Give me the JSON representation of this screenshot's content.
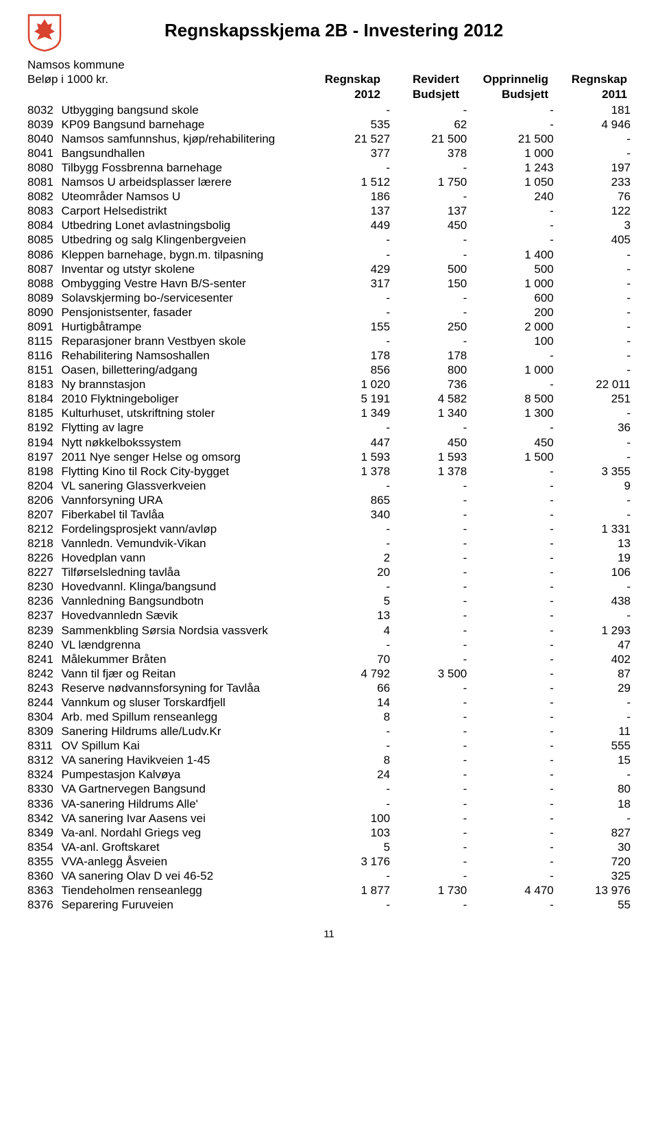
{
  "header": {
    "title": "Regnskapsskjema 2B - Investering 2012",
    "org": "Namsos kommune",
    "unit": "Beløp i 1000 kr.",
    "shield_bg": "#ffffff",
    "shield_red": "#d8432f",
    "shield_border": "#d8432f"
  },
  "columns": {
    "c1_top": "Regnskap",
    "c1_sub": "2012",
    "c2_top": "Revidert",
    "c2_sub": "Budsjett",
    "c3_top": "Opprinnelig",
    "c3_sub": "Budsjett",
    "c4_top": "Regnskap",
    "c4_sub": "2011"
  },
  "rows": [
    {
      "code": "8032",
      "desc": "Utbygging bangsund skole",
      "v": [
        "-",
        "-",
        "-",
        "181"
      ]
    },
    {
      "code": "8039",
      "desc": "KP09 Bangsund barnehage",
      "v": [
        "535",
        "62",
        "-",
        "4 946"
      ]
    },
    {
      "code": "8040",
      "desc": "Namsos samfunnshus, kjøp/rehabilitering",
      "v": [
        "21 527",
        "21 500",
        "21 500",
        "-"
      ]
    },
    {
      "code": "8041",
      "desc": "Bangsundhallen",
      "v": [
        "377",
        "378",
        "1 000",
        "-"
      ]
    },
    {
      "code": "8080",
      "desc": "Tilbygg Fossbrenna barnehage",
      "v": [
        "-",
        "-",
        "1 243",
        "197"
      ]
    },
    {
      "code": "8081",
      "desc": "Namsos U arbeidsplasser lærere",
      "v": [
        "1 512",
        "1 750",
        "1 050",
        "233"
      ]
    },
    {
      "code": "8082",
      "desc": "Uteområder Namsos U",
      "v": [
        "186",
        "-",
        "240",
        "76"
      ]
    },
    {
      "code": "8083",
      "desc": "Carport Helsedistrikt",
      "v": [
        "137",
        "137",
        "-",
        "122"
      ]
    },
    {
      "code": "8084",
      "desc": "Utbedring Lonet avlastningsbolig",
      "v": [
        "449",
        "450",
        "-",
        "3"
      ]
    },
    {
      "code": "8085",
      "desc": "Utbedring og salg Klingenbergveien",
      "v": [
        "-",
        "-",
        "-",
        "405"
      ]
    },
    {
      "code": "8086",
      "desc": "Kleppen barnehage, bygn.m. tilpasning",
      "v": [
        "-",
        "-",
        "1 400",
        "-"
      ]
    },
    {
      "code": "8087",
      "desc": "Inventar og utstyr skolene",
      "v": [
        "429",
        "500",
        "500",
        "-"
      ]
    },
    {
      "code": "8088",
      "desc": "Ombygging Vestre Havn B/S-senter",
      "v": [
        "317",
        "150",
        "1 000",
        "-"
      ]
    },
    {
      "code": "8089",
      "desc": "Solavskjerming bo-/servicesenter",
      "v": [
        "-",
        "-",
        "600",
        "-"
      ]
    },
    {
      "code": "8090",
      "desc": "Pensjonistsenter, fasader",
      "v": [
        "-",
        "-",
        "200",
        "-"
      ]
    },
    {
      "code": "8091",
      "desc": "Hurtigbåtrampe",
      "v": [
        "155",
        "250",
        "2 000",
        "-"
      ]
    },
    {
      "code": "8115",
      "desc": "Reparasjoner brann Vestbyen skole",
      "v": [
        "-",
        "-",
        "100",
        "-"
      ]
    },
    {
      "code": "8116",
      "desc": "Rehabilitering Namsoshallen",
      "v": [
        "178",
        "178",
        "-",
        "-"
      ]
    },
    {
      "code": "8151",
      "desc": "Oasen, billettering/adgang",
      "v": [
        "856",
        "800",
        "1 000",
        "-"
      ]
    },
    {
      "code": "8183",
      "desc": "Ny brannstasjon",
      "v": [
        "1 020",
        "736",
        "-",
        "22 011"
      ]
    },
    {
      "code": "8184",
      "desc": "2010 Flyktningeboliger",
      "v": [
        "5 191",
        "4 582",
        "8 500",
        "251"
      ]
    },
    {
      "code": "8185",
      "desc": "Kulturhuset, utskriftning stoler",
      "v": [
        "1 349",
        "1 340",
        "1 300",
        "-"
      ]
    },
    {
      "code": "8192",
      "desc": "Flytting av lagre",
      "v": [
        "-",
        "-",
        "-",
        "36"
      ]
    },
    {
      "code": "8194",
      "desc": "Nytt nøkkelbokssystem",
      "v": [
        "447",
        "450",
        "450",
        "-"
      ]
    },
    {
      "code": "8197",
      "desc": "2011 Nye senger Helse og omsorg",
      "v": [
        "1 593",
        "1 593",
        "1 500",
        "-"
      ]
    },
    {
      "code": "8198",
      "desc": "Flytting Kino til Rock City-bygget",
      "v": [
        "1 378",
        "1 378",
        "-",
        "3 355"
      ]
    },
    {
      "code": "8204",
      "desc": "VL sanering Glassverkveien",
      "v": [
        "-",
        "-",
        "-",
        "9"
      ]
    },
    {
      "code": "8206",
      "desc": "Vannforsyning URA",
      "v": [
        "865",
        "-",
        "-",
        "-"
      ]
    },
    {
      "code": "8207",
      "desc": "Fiberkabel til Tavlåa",
      "v": [
        "340",
        "-",
        "-",
        "-"
      ]
    },
    {
      "code": "8212",
      "desc": "Fordelingsprosjekt vann/avløp",
      "v": [
        "-",
        "-",
        "-",
        "1 331"
      ]
    },
    {
      "code": "8218",
      "desc": "Vannledn. Vemundvik-Vikan",
      "v": [
        "-",
        "-",
        "-",
        "13"
      ]
    },
    {
      "code": "8226",
      "desc": "Hovedplan vann",
      "v": [
        "2",
        "-",
        "-",
        "19"
      ]
    },
    {
      "code": "8227",
      "desc": "Tilførselsledning tavlåa",
      "v": [
        "20",
        "-",
        "-",
        "106"
      ]
    },
    {
      "code": "8230",
      "desc": "Hovedvannl. Klinga/bangsund",
      "v": [
        "-",
        "-",
        "-",
        "-"
      ]
    },
    {
      "code": "8236",
      "desc": "Vannledning Bangsundbotn",
      "v": [
        "5",
        "-",
        "-",
        "438"
      ]
    },
    {
      "code": "8237",
      "desc": "Hovedvannledn Sævik",
      "v": [
        "13",
        "-",
        "-",
        "-"
      ]
    },
    {
      "code": "8239",
      "desc": "Sammenkbling Sørsia Nordsia vassverk",
      "v": [
        "4",
        "-",
        "-",
        "1 293"
      ]
    },
    {
      "code": "8240",
      "desc": "VL lændgrenna",
      "v": [
        "-",
        "-",
        "-",
        "47"
      ]
    },
    {
      "code": "8241",
      "desc": "Målekummer Bråten",
      "v": [
        "70",
        "-",
        "-",
        "402"
      ]
    },
    {
      "code": "8242",
      "desc": "Vann til fjær og Reitan",
      "v": [
        "4 792",
        "3 500",
        "-",
        "87"
      ]
    },
    {
      "code": "8243",
      "desc": "Reserve nødvannsforsyning for Tavlåa",
      "v": [
        "66",
        "-",
        "-",
        "29"
      ]
    },
    {
      "code": "8244",
      "desc": "Vannkum og sluser Torskardfjell",
      "v": [
        "14",
        "-",
        "-",
        "-"
      ]
    },
    {
      "code": "8304",
      "desc": "Arb. med Spillum renseanlegg",
      "v": [
        "8",
        "-",
        "-",
        "-"
      ]
    },
    {
      "code": "8309",
      "desc": "Sanering Hildrums alle/Ludv.Kr",
      "v": [
        "-",
        "-",
        "-",
        "11"
      ]
    },
    {
      "code": "8311",
      "desc": "OV Spillum Kai",
      "v": [
        "-",
        "-",
        "-",
        "555"
      ]
    },
    {
      "code": "8312",
      "desc": "VA sanering Havikveien 1-45",
      "v": [
        "8",
        "-",
        "-",
        "15"
      ]
    },
    {
      "code": "8324",
      "desc": "Pumpestasjon Kalvøya",
      "v": [
        "24",
        "-",
        "-",
        "-"
      ]
    },
    {
      "code": "8330",
      "desc": "VA Gartnervegen Bangsund",
      "v": [
        "-",
        "-",
        "-",
        "80"
      ]
    },
    {
      "code": "8336",
      "desc": "VA-sanering Hildrums Alle'",
      "v": [
        "-",
        "-",
        "-",
        "18"
      ]
    },
    {
      "code": "8342",
      "desc": "VA sanering Ivar Aasens vei",
      "v": [
        "100",
        "-",
        "-",
        "-"
      ]
    },
    {
      "code": "8349",
      "desc": "Va-anl. Nordahl Griegs veg",
      "v": [
        "103",
        "-",
        "-",
        "827"
      ]
    },
    {
      "code": "8354",
      "desc": "VA-anl. Groftskaret",
      "v": [
        "5",
        "-",
        "-",
        "30"
      ]
    },
    {
      "code": "8355",
      "desc": "VVA-anlegg Åsveien",
      "v": [
        "3 176",
        "-",
        "-",
        "720"
      ]
    },
    {
      "code": "8360",
      "desc": "VA sanering Olav D vei 46-52",
      "v": [
        "-",
        "-",
        "-",
        "325"
      ]
    },
    {
      "code": "8363",
      "desc": "Tiendeholmen renseanlegg",
      "v": [
        "1 877",
        "1 730",
        "4 470",
        "13 976"
      ]
    },
    {
      "code": "8376",
      "desc": "Separering Furuveien",
      "v": [
        "-",
        "-",
        "-",
        "55"
      ]
    }
  ],
  "page_number": "11",
  "style": {
    "font_size_body": 17,
    "font_size_title": 26,
    "text_color": "#000000",
    "bg_color": "#ffffff"
  }
}
